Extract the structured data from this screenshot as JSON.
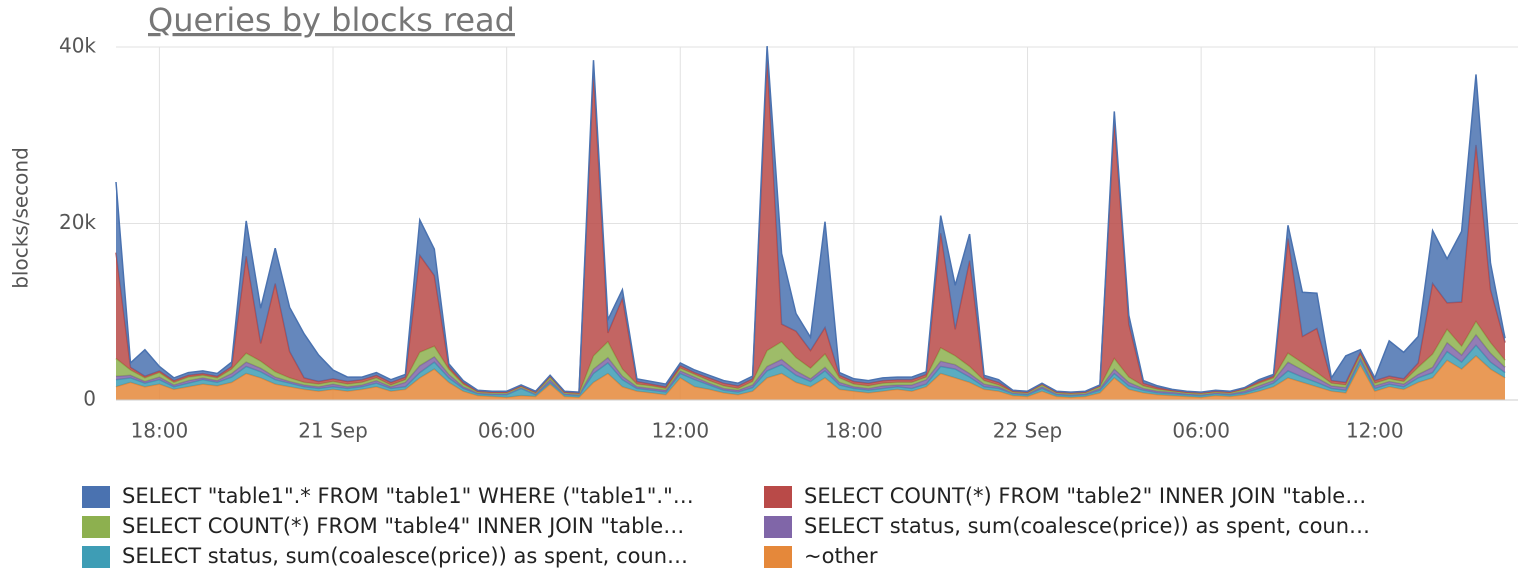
{
  "chart_data": {
    "type": "stacked-area",
    "title": "Queries by blocks read",
    "y_label": "blocks/second",
    "x": [
      "20 Sep 16:30",
      "20 Sep 17:00",
      "20 Sep 17:30",
      "20 Sep 18:00",
      "20 Sep 18:30",
      "20 Sep 19:00",
      "20 Sep 19:30",
      "20 Sep 20:00",
      "20 Sep 20:30",
      "20 Sep 21:00",
      "20 Sep 21:30",
      "20 Sep 22:00",
      "20 Sep 22:30",
      "20 Sep 23:00",
      "20 Sep 23:30",
      "21 Sep 00:00",
      "21 Sep 00:30",
      "21 Sep 01:00",
      "21 Sep 01:30",
      "21 Sep 02:00",
      "21 Sep 02:30",
      "21 Sep 03:00",
      "21 Sep 03:30",
      "21 Sep 04:00",
      "21 Sep 04:30",
      "21 Sep 05:00",
      "21 Sep 05:30",
      "21 Sep 06:00",
      "21 Sep 06:30",
      "21 Sep 07:00",
      "21 Sep 07:30",
      "21 Sep 08:00",
      "21 Sep 08:30",
      "21 Sep 09:00",
      "21 Sep 09:30",
      "21 Sep 10:00",
      "21 Sep 10:30",
      "21 Sep 11:00",
      "21 Sep 11:30",
      "21 Sep 12:00",
      "21 Sep 12:30",
      "21 Sep 13:00",
      "21 Sep 13:30",
      "21 Sep 14:00",
      "21 Sep 14:30",
      "21 Sep 15:00",
      "21 Sep 15:30",
      "21 Sep 16:00",
      "21 Sep 16:30",
      "21 Sep 17:00",
      "21 Sep 17:30",
      "21 Sep 18:00",
      "21 Sep 18:30",
      "21 Sep 19:00",
      "21 Sep 19:30",
      "21 Sep 20:00",
      "21 Sep 20:30",
      "21 Sep 21:00",
      "21 Sep 21:30",
      "21 Sep 22:00",
      "21 Sep 22:30",
      "21 Sep 23:00",
      "21 Sep 23:30",
      "22 Sep 00:00",
      "22 Sep 00:30",
      "22 Sep 01:00",
      "22 Sep 01:30",
      "22 Sep 02:00",
      "22 Sep 02:30",
      "22 Sep 03:00",
      "22 Sep 03:30",
      "22 Sep 04:00",
      "22 Sep 04:30",
      "22 Sep 05:00",
      "22 Sep 05:30",
      "22 Sep 06:00",
      "22 Sep 06:30",
      "22 Sep 07:00",
      "22 Sep 07:30",
      "22 Sep 08:00",
      "22 Sep 08:30",
      "22 Sep 09:00",
      "22 Sep 09:30",
      "22 Sep 10:00",
      "22 Sep 10:30",
      "22 Sep 11:00",
      "22 Sep 11:30",
      "22 Sep 12:00",
      "22 Sep 12:30",
      "22 Sep 13:00",
      "22 Sep 13:30",
      "22 Sep 14:00",
      "22 Sep 14:30",
      "22 Sep 15:00",
      "22 Sep 15:30",
      "22 Sep 16:00",
      "22 Sep 16:30"
    ],
    "xlim": [
      "20 Sep 16:30",
      "22 Sep 16:57"
    ],
    "xticks": [
      {
        "value": "20 Sep 18:00",
        "label": "18:00"
      },
      {
        "value": "21 Sep 00:00",
        "label": "21 Sep"
      },
      {
        "value": "21 Sep 06:00",
        "label": "06:00"
      },
      {
        "value": "21 Sep 12:00",
        "label": "12:00"
      },
      {
        "value": "21 Sep 18:00",
        "label": "18:00"
      },
      {
        "value": "22 Sep 00:00",
        "label": "22 Sep"
      },
      {
        "value": "22 Sep 06:00",
        "label": "06:00"
      },
      {
        "value": "22 Sep 12:00",
        "label": "12:00"
      }
    ],
    "ylim": [
      0,
      40000
    ],
    "yticks": [
      0,
      {
        "value": 20000,
        "label": "20k"
      },
      {
        "value": 40000,
        "label": "40k"
      }
    ],
    "grid": true,
    "series": [
      {
        "name": "SELECT \"table1\".* FROM \"table1\" WHERE (\"table1\".\"…",
        "color": "#4a72b0",
        "values": [
          8000,
          500,
          3000,
          500,
          300,
          300,
          300,
          300,
          500,
          4000,
          4000,
          4000,
          5000,
          5000,
          3000,
          1000,
          500,
          300,
          300,
          300,
          300,
          4000,
          3000,
          300,
          200,
          100,
          100,
          100,
          100,
          100,
          100,
          100,
          100,
          1500,
          1500,
          1000,
          300,
          300,
          300,
          300,
          300,
          300,
          300,
          300,
          300,
          1500,
          8000,
          2000,
          1500,
          12000,
          300,
          300,
          300,
          300,
          300,
          300,
          300,
          2000,
          5000,
          3000,
          300,
          300,
          100,
          100,
          100,
          100,
          100,
          100,
          100,
          1000,
          1000,
          300,
          200,
          100,
          100,
          100,
          100,
          100,
          100,
          200,
          200,
          1500,
          5000,
          4000,
          300,
          3000,
          300,
          300,
          4000,
          3000,
          3000,
          6000,
          5000,
          8000,
          8000,
          3000,
          500
        ]
      },
      {
        "name": "SELECT COUNT(*) FROM \"table2\" INNER JOIN \"table…",
        "color": "#b94a48",
        "values": [
          12000,
          300,
          200,
          200,
          200,
          200,
          200,
          200,
          300,
          11000,
          2000,
          10000,
          3000,
          500,
          300,
          300,
          300,
          300,
          300,
          300,
          300,
          11000,
          8000,
          300,
          200,
          100,
          100,
          100,
          100,
          100,
          100,
          100,
          100,
          32000,
          1000,
          8000,
          300,
          200,
          200,
          300,
          200,
          300,
          300,
          300,
          300,
          33000,
          2000,
          3000,
          2000,
          3000,
          300,
          300,
          300,
          300,
          300,
          300,
          300,
          13000,
          3000,
          12000,
          300,
          300,
          100,
          100,
          100,
          100,
          100,
          100,
          100,
          27000,
          6000,
          300,
          200,
          100,
          100,
          100,
          100,
          100,
          100,
          200,
          200,
          13000,
          3000,
          5000,
          300,
          300,
          300,
          300,
          300,
          300,
          500,
          8000,
          3000,
          5000,
          20000,
          6000,
          2000
        ]
      },
      {
        "name": "SELECT COUNT(*) FROM \"table4\" INNER JOIN \"table…",
        "color": "#8db04f",
        "values": [
          2000,
          600,
          400,
          500,
          300,
          400,
          300,
          300,
          500,
          1000,
          800,
          600,
          400,
          300,
          300,
          300,
          300,
          300,
          300,
          200,
          300,
          1500,
          1200,
          600,
          300,
          100,
          100,
          100,
          100,
          100,
          300,
          100,
          100,
          1500,
          1800,
          800,
          300,
          300,
          200,
          300,
          300,
          300,
          300,
          200,
          400,
          1800,
          2000,
          1500,
          1200,
          1500,
          500,
          300,
          300,
          300,
          300,
          300,
          300,
          1500,
          1000,
          800,
          400,
          200,
          100,
          100,
          200,
          100,
          100,
          100,
          200,
          1200,
          600,
          300,
          200,
          100,
          100,
          100,
          100,
          100,
          200,
          300,
          300,
          1000,
          800,
          600,
          300,
          300,
          300,
          300,
          300,
          300,
          800,
          1500,
          1500,
          1000,
          1500,
          1200,
          800
        ]
      },
      {
        "name": "SELECT status, sum(coalesce(price)) as spent, coun…",
        "color": "#8066a8",
        "values": [
          400,
          300,
          200,
          300,
          200,
          300,
          200,
          200,
          400,
          500,
          400,
          300,
          200,
          200,
          200,
          300,
          200,
          200,
          300,
          200,
          500,
          800,
          600,
          400,
          200,
          100,
          100,
          100,
          100,
          100,
          300,
          100,
          100,
          500,
          600,
          400,
          200,
          200,
          200,
          300,
          300,
          200,
          200,
          200,
          300,
          500,
          600,
          500,
          300,
          400,
          300,
          200,
          200,
          300,
          200,
          400,
          500,
          600,
          500,
          400,
          300,
          200,
          100,
          100,
          200,
          100,
          100,
          100,
          200,
          500,
          400,
          200,
          200,
          200,
          100,
          100,
          100,
          100,
          200,
          300,
          300,
          1000,
          800,
          500,
          300,
          300,
          300,
          300,
          300,
          300,
          400,
          600,
          1000,
          800,
          1200,
          1000,
          600
        ]
      },
      {
        "name": "SELECT status, sum(coalesce(price)) as spent, coun…",
        "color": "#3e9db5",
        "values": [
          800,
          500,
          400,
          500,
          300,
          400,
          500,
          400,
          600,
          800,
          700,
          500,
          400,
          300,
          300,
          300,
          300,
          300,
          400,
          300,
          300,
          600,
          800,
          500,
          300,
          200,
          200,
          300,
          800,
          200,
          200,
          200,
          200,
          1000,
          1200,
          800,
          300,
          300,
          300,
          500,
          800,
          500,
          300,
          300,
          400,
          800,
          1000,
          800,
          600,
          800,
          500,
          300,
          300,
          300,
          300,
          300,
          300,
          800,
          1000,
          600,
          300,
          300,
          200,
          200,
          300,
          200,
          200,
          200,
          300,
          500,
          400,
          300,
          200,
          200,
          200,
          200,
          200,
          200,
          200,
          300,
          400,
          800,
          600,
          500,
          300,
          300,
          500,
          300,
          300,
          300,
          500,
          600,
          1000,
          800,
          1200,
          800,
          600
        ]
      },
      {
        "name": "~other",
        "color": "#e5883a",
        "values": [
          1500,
          2000,
          1500,
          1800,
          1200,
          1500,
          1800,
          1600,
          2000,
          3000,
          2500,
          1800,
          1500,
          1200,
          1000,
          1200,
          1000,
          1200,
          1500,
          1000,
          1200,
          2500,
          3500,
          2000,
          1000,
          500,
          400,
          300,
          500,
          400,
          1800,
          400,
          300,
          2000,
          3000,
          1500,
          1000,
          800,
          600,
          2500,
          1500,
          1200,
          800,
          600,
          1000,
          2500,
          3000,
          2000,
          1500,
          2500,
          1200,
          1000,
          800,
          1000,
          1200,
          1000,
          1500,
          3000,
          2500,
          2000,
          1200,
          1000,
          500,
          400,
          1000,
          400,
          300,
          400,
          800,
          2500,
          1200,
          800,
          600,
          500,
          400,
          300,
          500,
          400,
          600,
          1000,
          1500,
          2500,
          2000,
          1500,
          1000,
          800,
          4000,
          1000,
          1500,
          1200,
          2000,
          2500,
          4500,
          3500,
          5000,
          3500,
          2500
        ]
      }
    ]
  }
}
